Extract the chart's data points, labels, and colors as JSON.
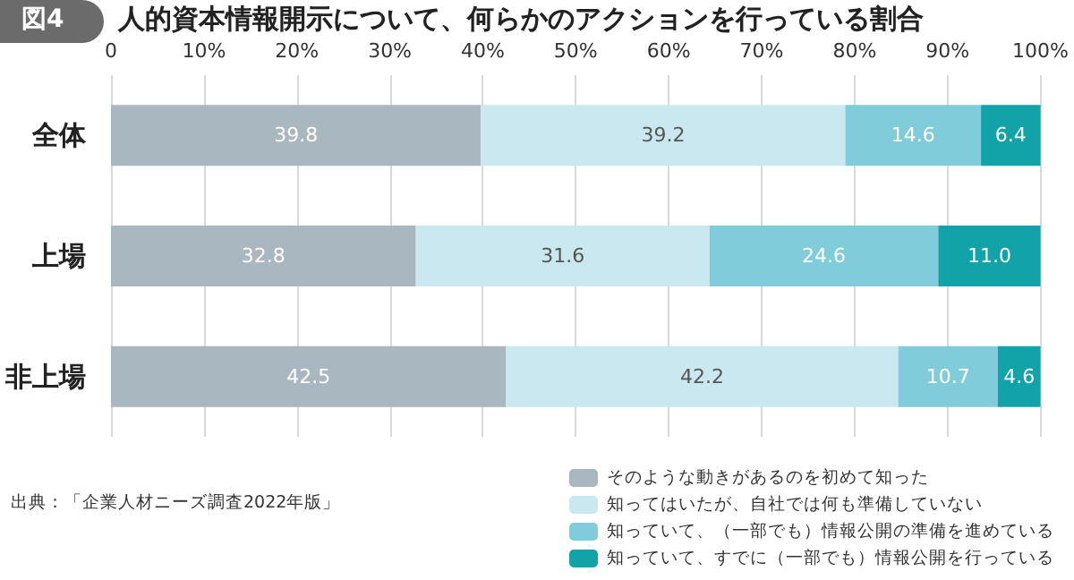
{
  "chart_data": {
    "type": "bar",
    "orientation": "horizontal",
    "stacked": true,
    "title": "図4",
    "subtitle": "人的資本情報開示について、何らかのアクションを行っている割合",
    "categories": [
      "全体",
      "上場",
      "非上場"
    ],
    "series": [
      {
        "name": "そのような動きがあるのを初めて知った",
        "color": "#a9b7c0",
        "values": [
          39.8,
          32.8,
          42.5
        ],
        "value_labels": [
          "39.8",
          "32.8",
          "42.5"
        ]
      },
      {
        "name": "知ってはいたが、自社では何も準備していない",
        "color": "#c9e8ef",
        "values": [
          39.2,
          31.6,
          42.2
        ],
        "value_labels": [
          "39.2",
          "31.6",
          "42.2"
        ]
      },
      {
        "name": "知っていて、（一部でも）情報公開の準備を進めている",
        "color": "#80ccdb",
        "values": [
          14.6,
          24.6,
          10.7
        ],
        "value_labels": [
          "14.6",
          "24.6",
          "10.7"
        ]
      },
      {
        "name": "知っていて、すでに（一部でも）情報公開を行っている",
        "color": "#12a3a8",
        "values": [
          6.4,
          11.0,
          4.6
        ],
        "value_labels": [
          "6.4",
          "11.0",
          "4.6"
        ]
      }
    ],
    "xlim": [
      0,
      100
    ],
    "xticks": [
      0,
      {
        "value": 10,
        "label": "10%"
      },
      {
        "value": 20,
        "label": "20%"
      },
      {
        "value": 30,
        "label": "30%"
      },
      {
        "value": 40,
        "label": "40%"
      },
      {
        "value": 50,
        "label": "50%"
      },
      {
        "value": 60,
        "label": "60%"
      },
      {
        "value": 70,
        "label": "70%"
      },
      {
        "value": 80,
        "label": "80%"
      },
      {
        "value": 90,
        "label": "90%"
      },
      {
        "value": 100,
        "label": "100%"
      }
    ],
    "grid": "x",
    "legend": "bottom right",
    "annotations": [
      "出典：「企業人材ニーズ調査2022年版」"
    ]
  }
}
